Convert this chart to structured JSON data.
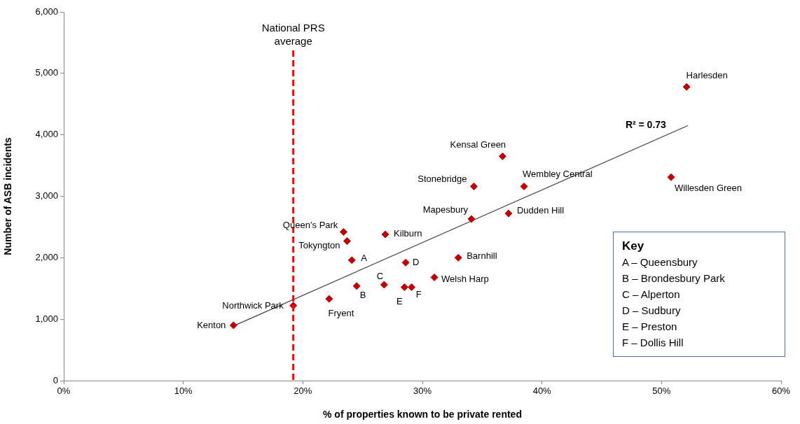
{
  "chart_data": {
    "type": "scatter",
    "xlabel": "% of properties known to be private rented",
    "ylabel": "Number of ASB incidents",
    "xlim": [
      0,
      60
    ],
    "xticks": [
      {
        "value": 0,
        "label": "0%"
      },
      {
        "value": 10,
        "label": "10%"
      },
      {
        "value": 20,
        "label": "20%"
      },
      {
        "value": 30,
        "label": "30%"
      },
      {
        "value": 40,
        "label": "40%"
      },
      {
        "value": 50,
        "label": "50%"
      },
      {
        "value": 60,
        "label": "60%"
      }
    ],
    "ylim": [
      0,
      6000
    ],
    "yticks": [
      {
        "value": 0,
        "label": "0"
      },
      {
        "value": 1000,
        "label": "1,000"
      },
      {
        "value": 2000,
        "label": "2,000"
      },
      {
        "value": 3000,
        "label": "3,000"
      },
      {
        "value": 4000,
        "label": "4,000"
      },
      {
        "value": 5000,
        "label": "5,000"
      },
      {
        "value": 6000,
        "label": "6,000"
      }
    ],
    "grid": false,
    "legend": false,
    "marker": "diamond",
    "series": [
      {
        "color": "#c00000",
        "x": [
          52.1,
          36.7,
          34.3,
          38.5,
          50.8,
          34.1,
          37.2,
          23.4,
          23.7,
          26.9,
          24.1,
          33.0,
          28.6,
          26.8,
          31.0,
          24.5,
          28.5,
          29.1,
          19.2,
          22.2,
          14.2
        ],
        "values": [
          4780,
          3650,
          3160,
          3160,
          3310,
          2630,
          2720,
          2420,
          2270,
          2380,
          1960,
          2000,
          1920,
          1560,
          1680,
          1540,
          1520,
          1520,
          1220,
          1330,
          900
        ]
      },
      {
        "type": "line",
        "color": "#404040",
        "x": [
          14.2,
          52.2
        ],
        "values": [
          890,
          4150
        ],
        "marker": "none",
        "line_style": "solid"
      }
    ],
    "ref_lines": [
      {
        "axis": "x",
        "value": 19.2,
        "label": "National PRS average",
        "color": "#ff0000",
        "line_style": "dashed"
      }
    ],
    "annotations": [
      {
        "text": "Harlesden",
        "x": 52.1,
        "y": 4780
      },
      {
        "text": "Kensal Green",
        "x": 36.7,
        "y": 3650
      },
      {
        "text": "Stonebridge",
        "x": 34.3,
        "y": 3160
      },
      {
        "text": "Wembley Central",
        "x": 38.5,
        "y": 3160
      },
      {
        "text": "Willesden Green",
        "x": 50.8,
        "y": 3310
      },
      {
        "text": "Mapesbury",
        "x": 34.1,
        "y": 2630
      },
      {
        "text": "Dudden Hill",
        "x": 37.2,
        "y": 2720
      },
      {
        "text": "Queen’s Park",
        "x": 23.4,
        "y": 2420
      },
      {
        "text": "Tokyngton",
        "x": 23.7,
        "y": 2270
      },
      {
        "text": "Kilburn",
        "x": 26.9,
        "y": 2380
      },
      {
        "text": "A",
        "x": 24.1,
        "y": 1960
      },
      {
        "text": "Barnhill",
        "x": 33.0,
        "y": 2000
      },
      {
        "text": "D",
        "x": 28.6,
        "y": 1920
      },
      {
        "text": "C",
        "x": 26.8,
        "y": 1560
      },
      {
        "text": "Welsh Harp",
        "x": 31.0,
        "y": 1680
      },
      {
        "text": "B",
        "x": 24.5,
        "y": 1540
      },
      {
        "text": "E",
        "x": 28.5,
        "y": 1520
      },
      {
        "text": "F",
        "x": 29.1,
        "y": 1520
      },
      {
        "text": "Northwick Park",
        "x": 19.2,
        "y": 1220
      },
      {
        "text": "Fryent",
        "x": 22.2,
        "y": 1330
      },
      {
        "text": "Kenton",
        "x": 14.2,
        "y": 900
      },
      {
        "text": "R² = 0.73",
        "x": 52.2,
        "y": 4150
      },
      "Key",
      "A – Queensbury",
      "B – Brondesbury Park",
      "C – Alperton",
      "D – Sudbury",
      "E – Preston",
      "F – Dollis Hill"
    ]
  }
}
